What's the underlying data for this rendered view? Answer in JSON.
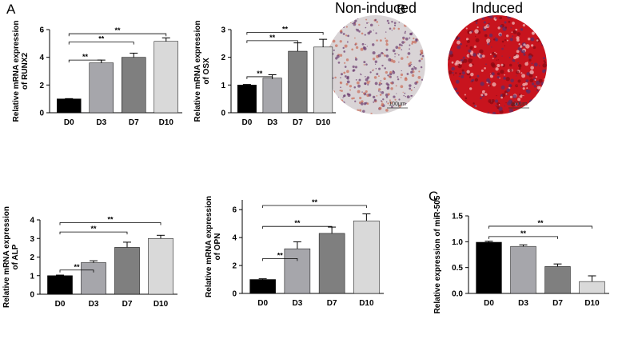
{
  "panel_labels": [
    "A",
    "B",
    "C"
  ],
  "images": [
    {
      "label": "Non-induced",
      "scale": "100μm"
    },
    {
      "label": "Induced",
      "scale": "100μm"
    }
  ],
  "chart_data": [
    {
      "type": "bar",
      "ylabel": [
        "Relative mRNA expression",
        "of RUNX2"
      ],
      "categories": [
        "D0",
        "D3",
        "D7",
        "D10"
      ],
      "values": [
        1.0,
        3.6,
        4.0,
        5.15
      ],
      "errors": [
        0.02,
        0.2,
        0.3,
        0.25
      ],
      "colors": [
        "#000000",
        "#a6a6ab",
        "#7f7f7f",
        "#d9d9d9"
      ],
      "ylim": [
        0,
        6
      ],
      "yticks": [
        0,
        2,
        4,
        6
      ],
      "significance": [
        {
          "from": 0,
          "to": 1,
          "y": 3.8,
          "label": "**"
        },
        {
          "from": 0,
          "to": 2,
          "y": 5.1,
          "label": "**"
        },
        {
          "from": 0,
          "to": 3,
          "y": 5.7,
          "label": "**"
        }
      ]
    },
    {
      "type": "bar",
      "ylabel": [
        "Relative mRNA expression",
        "of OSX"
      ],
      "categories": [
        "D0",
        "D3",
        "D7",
        "D10"
      ],
      "values": [
        1.0,
        1.25,
        2.22,
        2.37
      ],
      "errors": [
        0.02,
        0.12,
        0.3,
        0.28
      ],
      "colors": [
        "#000000",
        "#a6a6ab",
        "#7f7f7f",
        "#d9d9d9"
      ],
      "ylim": [
        0,
        3
      ],
      "yticks": [
        0,
        1,
        2,
        3
      ],
      "significance": [
        {
          "from": 0,
          "to": 1,
          "y": 1.3,
          "label": "**"
        },
        {
          "from": 0,
          "to": 2,
          "y": 2.6,
          "label": "**"
        },
        {
          "from": 0,
          "to": 3,
          "y": 2.9,
          "label": "**"
        }
      ]
    },
    {
      "type": "bar",
      "ylabel": [
        "Relative mRNA expression",
        "of ALP"
      ],
      "categories": [
        "D0",
        "D3",
        "D7",
        "D10"
      ],
      "values": [
        1.0,
        1.7,
        2.52,
        3.0
      ],
      "errors": [
        0.03,
        0.1,
        0.28,
        0.17
      ],
      "colors": [
        "#000000",
        "#a6a6ab",
        "#7f7f7f",
        "#d9d9d9"
      ],
      "ylim": [
        0,
        4
      ],
      "yticks": [
        0,
        1,
        2,
        3,
        4
      ],
      "significance": [
        {
          "from": 0,
          "to": 1,
          "y": 1.3,
          "label": "**"
        },
        {
          "from": 0,
          "to": 2,
          "y": 3.35,
          "label": "**"
        },
        {
          "from": 0,
          "to": 3,
          "y": 3.85,
          "label": "**"
        }
      ]
    },
    {
      "type": "bar",
      "ylabel": [
        "Relative mRNA expression",
        "of OPN"
      ],
      "categories": [
        "D0",
        "D3",
        "D7",
        "D10"
      ],
      "values": [
        1.0,
        3.2,
        4.3,
        5.2
      ],
      "errors": [
        0.05,
        0.5,
        0.45,
        0.5
      ],
      "colors": [
        "#000000",
        "#a6a6ab",
        "#7f7f7f",
        "#d9d9d9"
      ],
      "ylim": [
        0,
        6.7
      ],
      "yticks": [
        0,
        2,
        4,
        6
      ],
      "significance": [
        {
          "from": 0,
          "to": 1,
          "y": 2.5,
          "label": "**"
        },
        {
          "from": 0,
          "to": 2,
          "y": 4.8,
          "label": "**"
        },
        {
          "from": 0,
          "to": 3,
          "y": 6.3,
          "label": "**"
        }
      ]
    },
    {
      "type": "bar",
      "ylabel": [
        "Relative expression of miR-505"
      ],
      "categories": [
        "D0",
        "D3",
        "D7",
        "D10"
      ],
      "values": [
        0.99,
        0.91,
        0.52,
        0.23
      ],
      "errors": [
        0.02,
        0.03,
        0.05,
        0.11
      ],
      "colors": [
        "#000000",
        "#a6a6ab",
        "#7f7f7f",
        "#d9d9d9"
      ],
      "ylim": [
        0,
        1.5
      ],
      "yticks": [
        {
          "value": 0,
          "label": "0.0"
        },
        {
          "value": 0.5,
          "label": "0.5"
        },
        {
          "value": 1,
          "label": "1.0"
        },
        {
          "value": 1.5,
          "label": "1.5"
        }
      ],
      "significance": [
        {
          "from": 0,
          "to": 2,
          "y": 1.1,
          "label": "**"
        },
        {
          "from": 0,
          "to": 3,
          "y": 1.3,
          "label": "**"
        }
      ]
    }
  ]
}
